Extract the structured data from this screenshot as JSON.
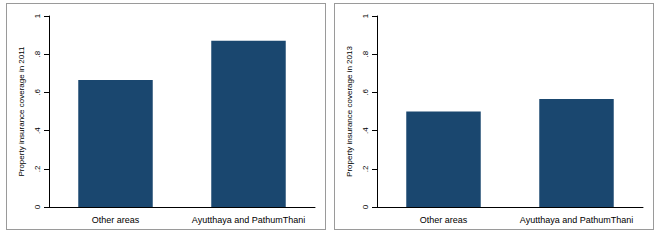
{
  "chart_data": [
    {
      "type": "bar",
      "y_label": "Property insurance coverage in 2011",
      "categories": [
        "Other areas",
        "Ayutthaya and PathumThani"
      ],
      "values": [
        0.665,
        0.87
      ],
      "color": "#1a476f",
      "ylim": [
        0,
        1
      ],
      "yticks": [
        0,
        {
          "value": 0.2,
          "label": ".2"
        },
        {
          "value": 0.4,
          "label": ".4"
        },
        {
          "value": 0.6,
          "label": ".6"
        },
        {
          "value": 0.8,
          "label": ".8"
        },
        1
      ],
      "grid": false
    },
    {
      "type": "bar",
      "y_label": "Property insurance coverage in 2013",
      "categories": [
        "Other areas",
        "Ayutthaya and PathumThani"
      ],
      "values": [
        0.5,
        0.565
      ],
      "color": "#1a476f",
      "ylim": [
        0,
        1
      ],
      "yticks": [
        0,
        {
          "value": 0.2,
          "label": ".2"
        },
        {
          "value": 0.4,
          "label": ".4"
        },
        {
          "value": 0.6,
          "label": ".6"
        },
        {
          "value": 0.8,
          "label": ".8"
        },
        1
      ],
      "grid": false
    }
  ]
}
